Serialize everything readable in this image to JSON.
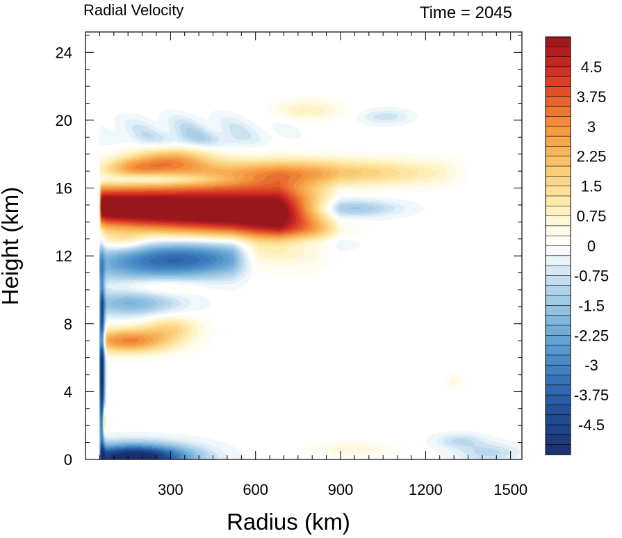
{
  "chart_data": {
    "type": "heatmap",
    "title": "Radial Velocity",
    "subtitle": "Time = 2045",
    "xlabel": "Radius (km)",
    "ylabel": "Height (km)",
    "xlim": [
      0,
      1540
    ],
    "ylim": [
      0,
      25.2
    ],
    "xticks": [
      300,
      600,
      900,
      1200,
      1500
    ],
    "yticks": [
      0,
      4,
      8,
      12,
      16,
      20,
      24
    ],
    "colorbar": {
      "min": -5.25,
      "max": 5.25,
      "step": 0.25,
      "tick_values": [
        4.5,
        3.75,
        3,
        2.25,
        1.5,
        0.75,
        0,
        -0.75,
        -1.5,
        -2.25,
        -3,
        -3.75,
        -4.5
      ],
      "tick_labels": [
        "4.5",
        "3.75",
        "3",
        "2.25",
        "1.5",
        "0.75",
        "0",
        "-0.75",
        "-1.5",
        "-2.25",
        "-3",
        "-3.75",
        "-4.5"
      ]
    },
    "features": [
      {
        "kind": "outflow jet",
        "r_range": [
          55,
          880
        ],
        "z_center": 14.8,
        "peak": 5.4
      },
      {
        "kind": "upper inflow",
        "r_range": [
          55,
          600
        ],
        "z_center": 11.8,
        "peak": -3.6
      },
      {
        "kind": "upper outflow",
        "r_range": [
          200,
          1380
        ],
        "z_center": 16.9,
        "peak": 2.2
      },
      {
        "kind": "mid outflow",
        "r_range": [
          55,
          400
        ],
        "z_center": 7.1,
        "peak": 3.1
      },
      {
        "kind": "mid inflow",
        "r_range": [
          55,
          400
        ],
        "z_center": 9.1,
        "peak": -1.8
      },
      {
        "kind": "boundary-layer inflow",
        "r_range": [
          55,
          450
        ],
        "z_center": 0.3,
        "peak": -5.3
      },
      {
        "kind": "eyewall inflow column",
        "r_range": [
          45,
          70
        ],
        "z_center": 5.5,
        "peak": -5.0
      }
    ]
  }
}
